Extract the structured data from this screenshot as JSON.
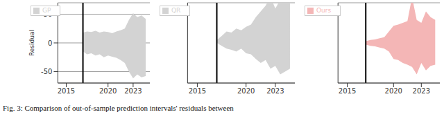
{
  "chart_data": [
    {
      "type": "area_range",
      "ylabel": "Residual",
      "xlim": [
        2014,
        2025
      ],
      "xticks": [
        2015,
        2020,
        2023
      ],
      "ylim": [
        -70,
        70
      ],
      "yticks": [
        -50,
        0,
        50
      ],
      "grid": true,
      "legend": "upper left",
      "split_x": 2017,
      "x": [
        2017,
        2017.5,
        2018,
        2018.5,
        2019,
        2019.5,
        2020,
        2020.5,
        2021,
        2021.5,
        2022,
        2022.5,
        2023,
        2023.5,
        2024,
        2024.5
      ],
      "series": [
        {
          "name": "GP",
          "color": "#d3d3d3",
          "upper": [
            18,
            20,
            19,
            21,
            18,
            20,
            19,
            17,
            20,
            22,
            25,
            40,
            52,
            45,
            48,
            42
          ],
          "lower": [
            -15,
            -20,
            -18,
            -22,
            -20,
            -25,
            -22,
            -24,
            -26,
            -30,
            -35,
            -50,
            -62,
            -55,
            -60,
            -58
          ]
        }
      ]
    },
    {
      "type": "area_range",
      "tick_labels": "x",
      "xlim": [
        2014,
        2025
      ],
      "xticks": [
        2015,
        2020,
        2023
      ],
      "ylim": [
        -70,
        70
      ],
      "yticks": [
        -50,
        0,
        50
      ],
      "grid": true,
      "legend": "upper left",
      "split_x": 2017,
      "x": [
        2017,
        2017.5,
        2018,
        2018.5,
        2019,
        2019.5,
        2020,
        2020.5,
        2021,
        2021.5,
        2022,
        2022.5,
        2023,
        2023.5,
        2024,
        2024.5
      ],
      "series": [
        {
          "name": "QR",
          "color": "#d3d3d3",
          "upper": [
            5,
            12,
            20,
            18,
            25,
            22,
            28,
            32,
            45,
            55,
            65,
            80,
            60,
            75,
            80,
            70
          ],
          "lower": [
            0,
            -5,
            -10,
            -12,
            -15,
            -10,
            -18,
            -20,
            -28,
            -35,
            -30,
            -45,
            -40,
            -55,
            -50,
            -45
          ]
        }
      ]
    },
    {
      "type": "area_range",
      "tick_labels": "x",
      "xlim": [
        2014,
        2025
      ],
      "xticks": [
        2015,
        2020,
        2023
      ],
      "ylim": [
        -70,
        70
      ],
      "yticks": [
        -50,
        0,
        50
      ],
      "grid": true,
      "legend": "upper left",
      "split_x": 2017,
      "x": [
        2017,
        2017.5,
        2018,
        2018.5,
        2019,
        2019.5,
        2020,
        2020.5,
        2021,
        2021.5,
        2022,
        2022.5,
        2023,
        2023.5,
        2024,
        2024.5
      ],
      "series": [
        {
          "name": "Ours",
          "color": "#f4b6b6",
          "upper": [
            3,
            5,
            6,
            8,
            10,
            20,
            30,
            32,
            35,
            38,
            80,
            40,
            35,
            55,
            45,
            40
          ],
          "lower": [
            -3,
            -5,
            -6,
            -8,
            -10,
            -15,
            -28,
            -30,
            -35,
            -38,
            -42,
            -55,
            -35,
            -48,
            -40,
            -38
          ]
        }
      ]
    }
  ],
  "caption": "Fig. 3: Comparison of out-of-sample prediction intervals' residuals between"
}
